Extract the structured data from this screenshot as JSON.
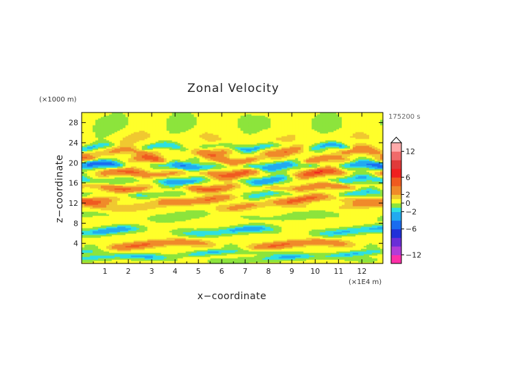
{
  "chart_data": {
    "type": "heatmap",
    "title": "Zonal Velocity",
    "xlabel": "x−coordinate",
    "ylabel": "z−coordinate",
    "x_unit": "(×1E4 m)",
    "y_unit": "(×1000 m)",
    "time_label": "175200 s",
    "xlim": [
      0,
      12.9
    ],
    "ylim": [
      0,
      30
    ],
    "x_ticks": [
      1,
      2,
      3,
      4,
      5,
      6,
      7,
      8,
      9,
      10,
      11,
      12
    ],
    "y_ticks": [
      4,
      8,
      12,
      16,
      20,
      24,
      28
    ],
    "colorbar": {
      "range": [
        -14,
        14
      ],
      "ticks": [
        "12",
        "6",
        "2",
        "0",
        "−2",
        "−6",
        "−12"
      ],
      "tick_values": [
        12,
        6,
        2,
        0,
        -2,
        -6,
        -12
      ],
      "levels": [
        {
          "from": -14,
          "to": -12,
          "color": "#ff2fa8"
        },
        {
          "from": -12,
          "to": -10,
          "color": "#b23cd8"
        },
        {
          "from": -10,
          "to": -8,
          "color": "#6a2ed8"
        },
        {
          "from": -8,
          "to": -6,
          "color": "#2030d8"
        },
        {
          "from": -6,
          "to": -4,
          "color": "#1a6cf0"
        },
        {
          "from": -4,
          "to": -2,
          "color": "#22aaf0"
        },
        {
          "from": -2,
          "to": -1,
          "color": "#2ee0e0"
        },
        {
          "from": -1,
          "to": 0,
          "color": "#8ce43c"
        },
        {
          "from": 0,
          "to": 1,
          "color": "#ffff2a"
        },
        {
          "from": 1,
          "to": 2,
          "color": "#f0c830"
        },
        {
          "from": 2,
          "to": 4,
          "color": "#f08a2a"
        },
        {
          "from": 4,
          "to": 6,
          "color": "#f05a20"
        },
        {
          "from": 6,
          "to": 8,
          "color": "#f02020"
        },
        {
          "from": 8,
          "to": 10,
          "color": "#e03a3a"
        },
        {
          "from": 10,
          "to": 12,
          "color": "#f06a6a"
        },
        {
          "from": 12,
          "to": 14,
          "color": "#ffaaaa"
        }
      ]
    },
    "bands": [
      {
        "z": 1.0,
        "u": -2,
        "halfwidth": 0.6
      },
      {
        "z": 2.0,
        "u": -2,
        "halfwidth": 0.5
      },
      {
        "z": 3.8,
        "u": 4,
        "halfwidth": 0.7
      },
      {
        "z": 6.5,
        "u": -3,
        "halfwidth": 0.7
      },
      {
        "z": 9.5,
        "u": -1,
        "halfwidth": 0.8
      },
      {
        "z": 11.5,
        "u": 2,
        "halfwidth": 0.8
      },
      {
        "z": 12.8,
        "u": 4,
        "halfwidth": 0.7
      },
      {
        "z": 13.8,
        "u": -2,
        "halfwidth": 0.7
      },
      {
        "z": 15.2,
        "u": 4,
        "halfwidth": 0.7
      },
      {
        "z": 16.6,
        "u": -3,
        "halfwidth": 0.8
      },
      {
        "z": 18.0,
        "u": 5,
        "halfwidth": 0.8
      },
      {
        "z": 19.5,
        "u": -5,
        "halfwidth": 0.8
      },
      {
        "z": 20.6,
        "u": 4,
        "halfwidth": 0.7
      },
      {
        "z": 22.3,
        "u": 3,
        "halfwidth": 0.8
      },
      {
        "z": 23.2,
        "u": -3,
        "halfwidth": 0.6
      },
      {
        "z": 25.0,
        "u": 1,
        "halfwidth": 1.5
      },
      {
        "z": 27.5,
        "u": -0.5,
        "halfwidth": 3.0
      }
    ]
  }
}
